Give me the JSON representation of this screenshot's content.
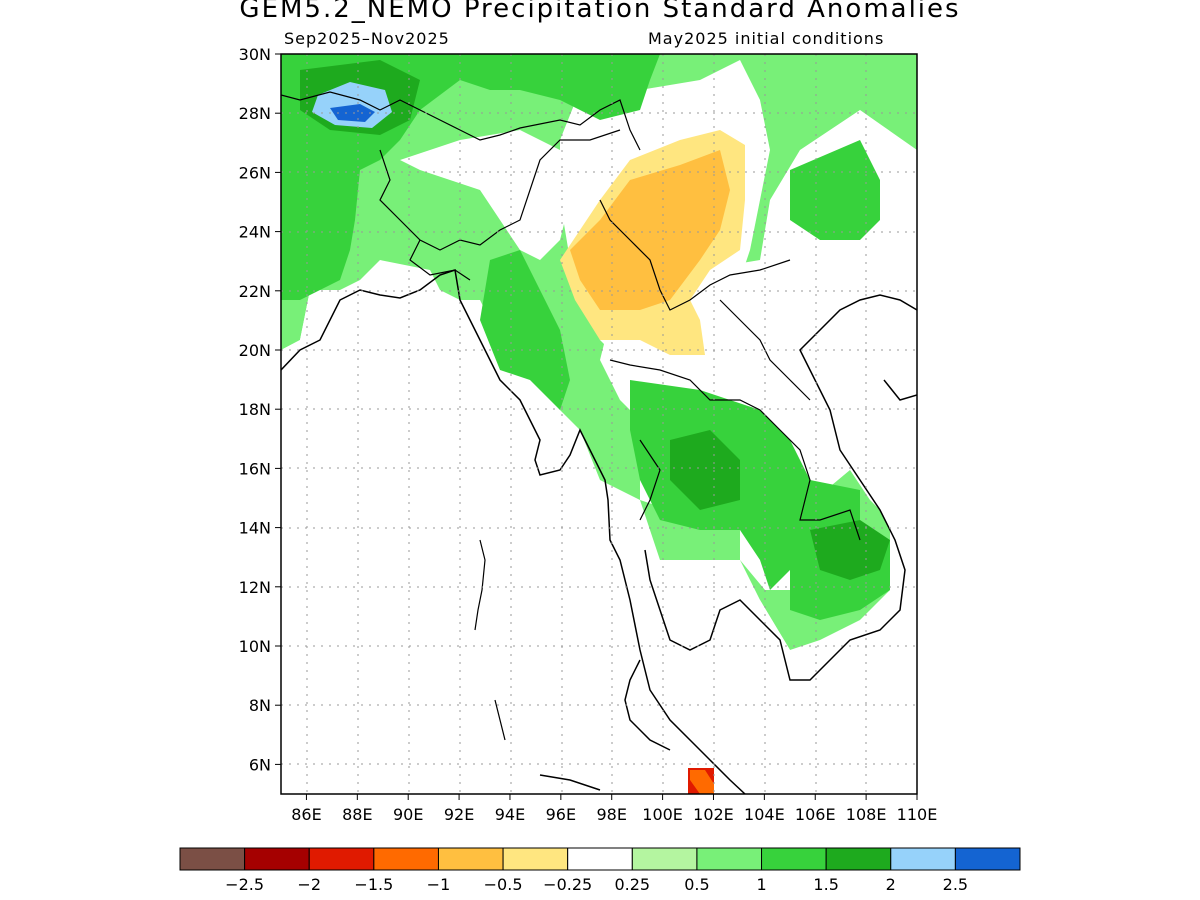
{
  "title": "GEM5.2_NEMO Precipitation Standard Anomalies",
  "period": "Sep2025–Nov2025",
  "initial_conditions": "May2025 initial conditions",
  "axes": {
    "lat_labels": [
      "30N",
      "28N",
      "26N",
      "24N",
      "22N",
      "20N",
      "18N",
      "16N",
      "14N",
      "12N",
      "10N",
      "8N",
      "6N"
    ],
    "lon_labels": [
      "86E",
      "88E",
      "90E",
      "92E",
      "94E",
      "96E",
      "98E",
      "100E",
      "102E",
      "104E",
      "106E",
      "108E",
      "110E"
    ],
    "lat_range": [
      5,
      30
    ],
    "lon_range": [
      85,
      110
    ]
  },
  "legend": {
    "colors": [
      "#7b4f45",
      "#a50000",
      "#e01a00",
      "#ff6a00",
      "#ffbf40",
      "#ffe680",
      "#ffffff",
      "#b4f5a0",
      "#78f078",
      "#37d23c",
      "#1eaa1e",
      "#96d2fa",
      "#1464d2"
    ],
    "labels": [
      "−2.5",
      "−2",
      "−1.5",
      "−1",
      "−0.5",
      "−0.25",
      "0.25",
      "0.5",
      "1",
      "1.5",
      "2",
      "2.5"
    ]
  },
  "colors": {
    "very_wet": "#1464d2",
    "wet_2": "#96d2fa",
    "wet_15": "#1eaa1e",
    "wet_1": "#37d23c",
    "wet_05": "#78f078",
    "wet_025": "#b4f5a0",
    "dry_025": "#ffe680",
    "dry_05": "#ffbf40",
    "dry_1": "#ff6a00",
    "dry_15": "#e01a00"
  }
}
